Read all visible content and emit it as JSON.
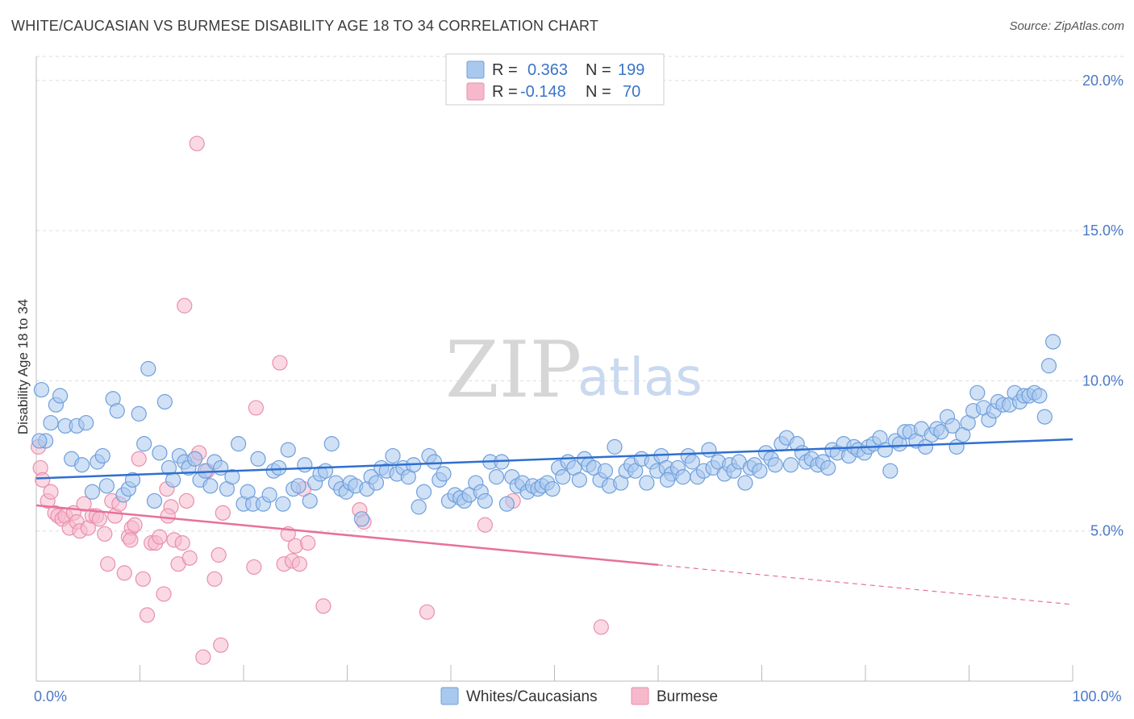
{
  "header": {
    "title": "WHITE/CAUCASIAN VS BURMESE DISABILITY AGE 18 TO 34 CORRELATION CHART",
    "source": "Source: ZipAtlas.com"
  },
  "watermark": {
    "zip": "ZIP",
    "atlas": "atlas"
  },
  "colors": {
    "blue_fill": "#a9c8ee",
    "blue_stroke": "#6e9fdc",
    "blue_line": "#2f6fd0",
    "pink_fill": "#f6b9cc",
    "pink_stroke": "#e98fae",
    "pink_line": "#e8709a",
    "grid": "#dddddd",
    "tick_text": "#4a78c8"
  },
  "legend": {
    "rows": [
      {
        "r_label": "R =",
        "r_value": "0.363",
        "n_label": "N =",
        "n_value": "199"
      },
      {
        "r_label": "R =",
        "r_value": "-0.148",
        "n_label": "N =",
        "n_value": "70"
      }
    ]
  },
  "bottom_legend": {
    "items": [
      "Whites/Caucasians",
      "Burmese"
    ]
  },
  "chart_data": {
    "type": "scatter",
    "title": "WHITE/CAUCASIAN VS BURMESE DISABILITY AGE 18 TO 34 CORRELATION CHART",
    "xlabel": "",
    "ylabel": "Disability Age 18 to 34",
    "xlim": [
      0,
      100
    ],
    "ylim": [
      0,
      20.8
    ],
    "x_ticks": [
      0,
      10,
      20,
      30,
      40,
      50,
      60,
      70,
      80,
      90,
      100
    ],
    "x_tick_labels": {
      "0": "0.0%",
      "100": "100.0%"
    },
    "y_ticks": [
      5,
      10,
      15,
      20
    ],
    "y_tick_labels": [
      "5.0%",
      "10.0%",
      "15.0%",
      "20.0%"
    ],
    "grid": true,
    "legend_position": "top-center",
    "series": [
      {
        "name": "Whites/Caucasians",
        "color": "#a9c8ee",
        "trend": {
          "x": [
            0,
            100
          ],
          "y": [
            6.75,
            8.05
          ],
          "dashed_from": null
        },
        "points": [
          [
            0.5,
            9.7
          ],
          [
            0.9,
            8.0
          ],
          [
            1.4,
            8.6
          ],
          [
            1.9,
            9.2
          ],
          [
            2.3,
            9.5
          ],
          [
            2.8,
            8.5
          ],
          [
            3.4,
            7.4
          ],
          [
            3.9,
            8.5
          ],
          [
            4.4,
            7.2
          ],
          [
            4.8,
            8.6
          ],
          [
            5.4,
            6.3
          ],
          [
            5.9,
            7.3
          ],
          [
            6.4,
            7.5
          ],
          [
            6.8,
            6.5
          ],
          [
            7.4,
            9.4
          ],
          [
            7.8,
            9.0
          ],
          [
            8.4,
            6.2
          ],
          [
            8.9,
            6.4
          ],
          [
            9.3,
            6.7
          ],
          [
            9.9,
            8.9
          ],
          [
            10.4,
            7.9
          ],
          [
            10.8,
            10.4
          ],
          [
            11.4,
            6.0
          ],
          [
            11.9,
            7.6
          ],
          [
            12.4,
            9.3
          ],
          [
            12.8,
            7.1
          ],
          [
            13.2,
            6.7
          ],
          [
            13.8,
            7.5
          ],
          [
            14.3,
            7.3
          ],
          [
            14.7,
            7.1
          ],
          [
            15.3,
            7.4
          ],
          [
            15.8,
            6.7
          ],
          [
            16.3,
            7.0
          ],
          [
            16.8,
            6.5
          ],
          [
            17.2,
            7.3
          ],
          [
            17.8,
            7.1
          ],
          [
            18.4,
            6.4
          ],
          [
            18.9,
            6.8
          ],
          [
            19.5,
            7.9
          ],
          [
            20.0,
            5.9
          ],
          [
            20.4,
            6.3
          ],
          [
            20.9,
            5.9
          ],
          [
            21.4,
            7.4
          ],
          [
            21.9,
            5.9
          ],
          [
            22.5,
            6.2
          ],
          [
            22.9,
            7.0
          ],
          [
            23.4,
            7.1
          ],
          [
            23.8,
            5.9
          ],
          [
            24.3,
            7.7
          ],
          [
            24.8,
            6.4
          ],
          [
            25.3,
            6.5
          ],
          [
            25.9,
            7.2
          ],
          [
            26.4,
            6.0
          ],
          [
            26.9,
            6.6
          ],
          [
            27.4,
            6.9
          ],
          [
            27.9,
            7.0
          ],
          [
            28.5,
            7.9
          ],
          [
            28.9,
            6.6
          ],
          [
            29.4,
            6.4
          ],
          [
            29.9,
            6.3
          ],
          [
            30.3,
            6.6
          ],
          [
            30.8,
            6.5
          ],
          [
            31.4,
            5.4
          ],
          [
            31.9,
            6.4
          ],
          [
            32.3,
            6.8
          ],
          [
            32.8,
            6.6
          ],
          [
            33.3,
            7.1
          ],
          [
            33.8,
            7.0
          ],
          [
            34.4,
            7.5
          ],
          [
            34.8,
            6.9
          ],
          [
            35.4,
            7.1
          ],
          [
            35.9,
            6.8
          ],
          [
            36.4,
            7.2
          ],
          [
            36.9,
            5.8
          ],
          [
            37.4,
            6.3
          ],
          [
            37.9,
            7.5
          ],
          [
            38.4,
            7.3
          ],
          [
            38.9,
            6.7
          ],
          [
            39.3,
            6.9
          ],
          [
            39.8,
            6.0
          ],
          [
            40.4,
            6.2
          ],
          [
            40.9,
            6.1
          ],
          [
            41.3,
            6.0
          ],
          [
            41.8,
            6.2
          ],
          [
            42.4,
            6.6
          ],
          [
            42.9,
            6.3
          ],
          [
            43.3,
            6.0
          ],
          [
            43.8,
            7.3
          ],
          [
            44.4,
            6.8
          ],
          [
            44.9,
            7.3
          ],
          [
            45.4,
            5.9
          ],
          [
            45.9,
            6.8
          ],
          [
            46.4,
            6.5
          ],
          [
            46.9,
            6.6
          ],
          [
            47.4,
            6.3
          ],
          [
            47.9,
            6.5
          ],
          [
            48.4,
            6.4
          ],
          [
            48.8,
            6.5
          ],
          [
            49.3,
            6.6
          ],
          [
            49.8,
            6.4
          ],
          [
            50.4,
            7.1
          ],
          [
            50.8,
            6.8
          ],
          [
            51.3,
            7.3
          ],
          [
            51.9,
            7.1
          ],
          [
            52.4,
            6.7
          ],
          [
            52.9,
            7.4
          ],
          [
            53.3,
            7.2
          ],
          [
            53.8,
            7.1
          ],
          [
            54.4,
            6.7
          ],
          [
            54.9,
            7.0
          ],
          [
            55.3,
            6.5
          ],
          [
            55.8,
            7.8
          ],
          [
            56.4,
            6.6
          ],
          [
            56.9,
            7.0
          ],
          [
            57.4,
            7.2
          ],
          [
            57.8,
            7.0
          ],
          [
            58.4,
            7.4
          ],
          [
            58.9,
            6.6
          ],
          [
            59.4,
            7.3
          ],
          [
            59.9,
            7.0
          ],
          [
            60.3,
            7.5
          ],
          [
            60.8,
            7.1
          ],
          [
            61.3,
            6.9
          ],
          [
            61.9,
            7.1
          ],
          [
            62.4,
            6.8
          ],
          [
            62.9,
            7.5
          ],
          [
            63.3,
            7.3
          ],
          [
            63.8,
            6.8
          ],
          [
            64.4,
            7.0
          ],
          [
            64.9,
            7.7
          ],
          [
            65.3,
            7.1
          ],
          [
            65.8,
            7.3
          ],
          [
            66.4,
            6.9
          ],
          [
            66.9,
            7.2
          ],
          [
            67.3,
            7.0
          ],
          [
            67.8,
            7.3
          ],
          [
            68.4,
            6.6
          ],
          [
            68.9,
            7.1
          ],
          [
            69.3,
            7.2
          ],
          [
            69.8,
            7.0
          ],
          [
            70.4,
            7.6
          ],
          [
            70.9,
            7.4
          ],
          [
            71.3,
            7.2
          ],
          [
            71.9,
            7.9
          ],
          [
            72.4,
            8.1
          ],
          [
            72.8,
            7.2
          ],
          [
            73.4,
            7.9
          ],
          [
            73.9,
            7.6
          ],
          [
            74.3,
            7.3
          ],
          [
            74.8,
            7.4
          ],
          [
            75.4,
            7.2
          ],
          [
            75.9,
            7.3
          ],
          [
            76.4,
            7.1
          ],
          [
            76.8,
            7.7
          ],
          [
            77.3,
            7.6
          ],
          [
            77.9,
            7.9
          ],
          [
            78.4,
            7.5
          ],
          [
            78.9,
            7.8
          ],
          [
            79.3,
            7.7
          ],
          [
            79.9,
            7.6
          ],
          [
            80.3,
            7.8
          ],
          [
            80.8,
            7.9
          ],
          [
            81.4,
            8.1
          ],
          [
            81.9,
            7.7
          ],
          [
            82.4,
            7.0
          ],
          [
            82.9,
            8.0
          ],
          [
            83.3,
            7.9
          ],
          [
            83.8,
            8.3
          ],
          [
            84.3,
            8.3
          ],
          [
            84.9,
            8.0
          ],
          [
            85.4,
            8.4
          ],
          [
            85.8,
            7.8
          ],
          [
            86.4,
            8.2
          ],
          [
            86.9,
            8.4
          ],
          [
            87.3,
            8.3
          ],
          [
            87.9,
            8.8
          ],
          [
            88.4,
            8.5
          ],
          [
            88.8,
            7.8
          ],
          [
            89.4,
            8.2
          ],
          [
            89.9,
            8.6
          ],
          [
            90.4,
            9.0
          ],
          [
            90.8,
            9.6
          ],
          [
            91.4,
            9.1
          ],
          [
            91.9,
            8.7
          ],
          [
            92.4,
            9.0
          ],
          [
            92.8,
            9.3
          ],
          [
            93.3,
            9.2
          ],
          [
            93.9,
            9.2
          ],
          [
            94.4,
            9.6
          ],
          [
            94.9,
            9.3
          ],
          [
            95.3,
            9.5
          ],
          [
            95.8,
            9.5
          ],
          [
            96.3,
            9.6
          ],
          [
            96.8,
            9.5
          ],
          [
            97.3,
            8.8
          ],
          [
            97.7,
            10.5
          ],
          [
            98.1,
            11.3
          ],
          [
            0.3,
            8.0
          ],
          [
            60.9,
            6.7
          ]
        ]
      },
      {
        "name": "Burmese",
        "color": "#f6b9cc",
        "trend": {
          "x": [
            0,
            100
          ],
          "y": [
            5.85,
            2.55
          ],
          "dashed_from": 60
        },
        "points": [
          [
            0.2,
            7.8
          ],
          [
            0.4,
            7.1
          ],
          [
            0.6,
            6.7
          ],
          [
            1.1,
            6.0
          ],
          [
            1.4,
            6.3
          ],
          [
            1.8,
            5.6
          ],
          [
            2.1,
            5.5
          ],
          [
            2.5,
            5.4
          ],
          [
            2.8,
            5.5
          ],
          [
            3.2,
            5.1
          ],
          [
            3.6,
            5.6
          ],
          [
            3.9,
            5.3
          ],
          [
            4.2,
            5.0
          ],
          [
            4.6,
            5.9
          ],
          [
            5.0,
            5.1
          ],
          [
            5.4,
            5.5
          ],
          [
            5.8,
            5.5
          ],
          [
            6.1,
            5.4
          ],
          [
            6.6,
            4.9
          ],
          [
            6.9,
            3.9
          ],
          [
            7.3,
            6.0
          ],
          [
            7.6,
            5.5
          ],
          [
            8.0,
            5.9
          ],
          [
            8.5,
            3.6
          ],
          [
            8.9,
            4.8
          ],
          [
            9.2,
            5.1
          ],
          [
            9.5,
            5.2
          ],
          [
            9.9,
            7.4
          ],
          [
            10.3,
            3.4
          ],
          [
            10.7,
            2.2
          ],
          [
            11.1,
            4.6
          ],
          [
            11.5,
            4.6
          ],
          [
            11.9,
            4.8
          ],
          [
            12.3,
            2.9
          ],
          [
            12.6,
            6.4
          ],
          [
            13.0,
            5.8
          ],
          [
            13.3,
            4.7
          ],
          [
            13.7,
            3.9
          ],
          [
            14.1,
            4.6
          ],
          [
            14.5,
            6.0
          ],
          [
            14.8,
            4.1
          ],
          [
            15.3,
            7.4
          ],
          [
            15.7,
            7.6
          ],
          [
            16.1,
            0.8
          ],
          [
            16.5,
            7.0
          ],
          [
            17.2,
            3.4
          ],
          [
            17.6,
            4.2
          ],
          [
            17.8,
            1.2
          ],
          [
            18.0,
            5.6
          ],
          [
            15.5,
            17.9
          ],
          [
            14.3,
            12.5
          ],
          [
            21.0,
            3.8
          ],
          [
            21.2,
            9.1
          ],
          [
            23.5,
            10.6
          ],
          [
            23.9,
            3.9
          ],
          [
            24.3,
            4.9
          ],
          [
            24.7,
            4.0
          ],
          [
            25.0,
            4.5
          ],
          [
            25.4,
            3.9
          ],
          [
            25.8,
            6.4
          ],
          [
            26.2,
            4.6
          ],
          [
            27.7,
            2.5
          ],
          [
            31.2,
            5.7
          ],
          [
            31.6,
            5.3
          ],
          [
            37.7,
            2.3
          ],
          [
            43.3,
            5.2
          ],
          [
            46.0,
            6.0
          ],
          [
            54.5,
            1.8
          ],
          [
            12.7,
            5.5
          ],
          [
            9.1,
            4.7
          ]
        ]
      }
    ]
  }
}
